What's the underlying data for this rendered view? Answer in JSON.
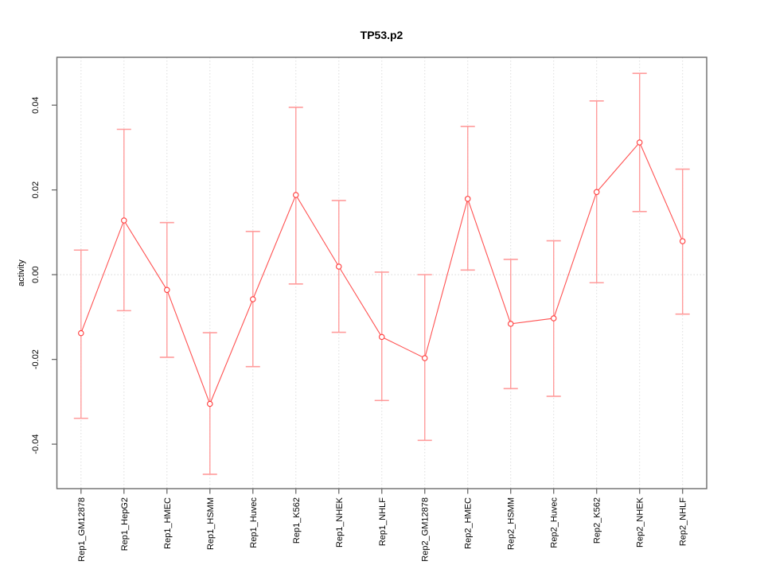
{
  "figure": {
    "background": "#FFFFFF"
  },
  "chart_data": {
    "type": "line",
    "title": "TP53.p2",
    "xlabel": "",
    "ylabel": "activity",
    "ylim": [
      -0.0505,
      0.0513
    ],
    "yticks": [
      -0.04,
      -0.02,
      0,
      0.02,
      0.04
    ],
    "ytick_labels": [
      "-0.04",
      "-0.02",
      "0.00",
      "0.02",
      "0.04"
    ],
    "grid": {
      "vertical_dotted_per_category": true,
      "horizontal_zero_line_dotted": true,
      "other_horizontal": false
    },
    "legend": "none",
    "categories": [
      "Rep1_GM12878",
      "Rep1_HepG2",
      "Rep1_HMEC",
      "Rep1_HSMM",
      "Rep1_Huvec",
      "Rep1_K562",
      "Rep1_NHEK",
      "Rep1_NHLF",
      "Rep2_GM12878",
      "Rep2_HMEC",
      "Rep2_HSMM",
      "Rep2_Huvec",
      "Rep2_K562",
      "Rep2_NHEK",
      "Rep2_NHLF"
    ],
    "series": [
      {
        "name": "activity",
        "values": [
          -0.0138,
          0.0128,
          -0.0036,
          -0.0305,
          -0.0058,
          0.0188,
          0.0019,
          -0.0147,
          -0.0197,
          0.0179,
          -0.0116,
          -0.0103,
          0.0195,
          0.0312,
          0.0079
        ],
        "error_low": [
          -0.0339,
          -0.0085,
          -0.0195,
          -0.0471,
          -0.0217,
          -0.0022,
          -0.0136,
          -0.0297,
          -0.0391,
          0.0011,
          -0.0269,
          -0.0287,
          -0.0019,
          0.0149,
          -0.0093
        ],
        "error_high": [
          0.0058,
          0.0343,
          0.0123,
          -0.0137,
          0.0102,
          0.0395,
          0.0175,
          0.0006,
          0.0,
          0.035,
          0.0036,
          0.008,
          0.041,
          0.0475,
          0.0249
        ]
      }
    ],
    "colors": {
      "series_line": "#FF5252",
      "marker_stroke": "#FF3B3B",
      "marker_fill": "#FFFFFF",
      "error_bar": "#FF9C9C",
      "gridline": "#DDDDDD",
      "zero_line": "#D6D6D6",
      "frame": "#6B6B6B",
      "tick": "#6B6B6B",
      "text": "#000000"
    }
  }
}
